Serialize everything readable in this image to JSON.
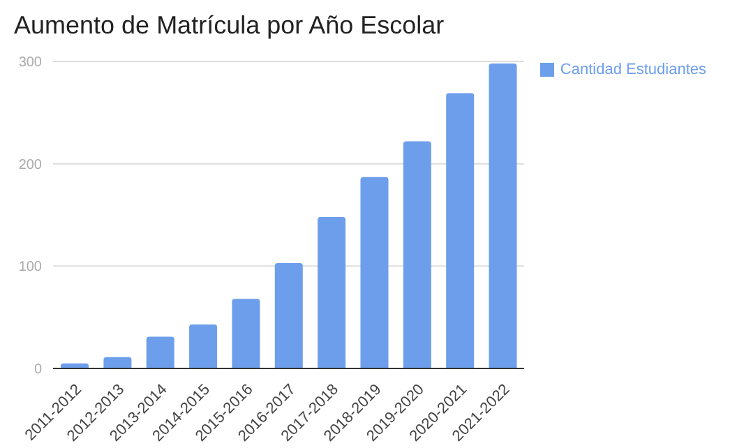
{
  "chart_data": {
    "type": "bar",
    "title": "Aumento de Matrícula por Año Escolar",
    "categories": [
      "2011-2012",
      "2012-2013",
      "2013-2014",
      "2014-2015",
      "2015-2016",
      "2016-2017",
      "2017-2018",
      "2018-2019",
      "2019-2020",
      "2020-2021",
      "2021-2022"
    ],
    "series": [
      {
        "name": "Cantidad Estudiantes",
        "color": "#6d9eeb",
        "values": [
          5,
          11,
          31,
          43,
          68,
          103,
          148,
          187,
          222,
          269,
          298
        ]
      }
    ],
    "ylim": [
      0,
      300
    ],
    "yticks": [
      0,
      100,
      200,
      300
    ],
    "grid": "y",
    "legend": "top right"
  }
}
